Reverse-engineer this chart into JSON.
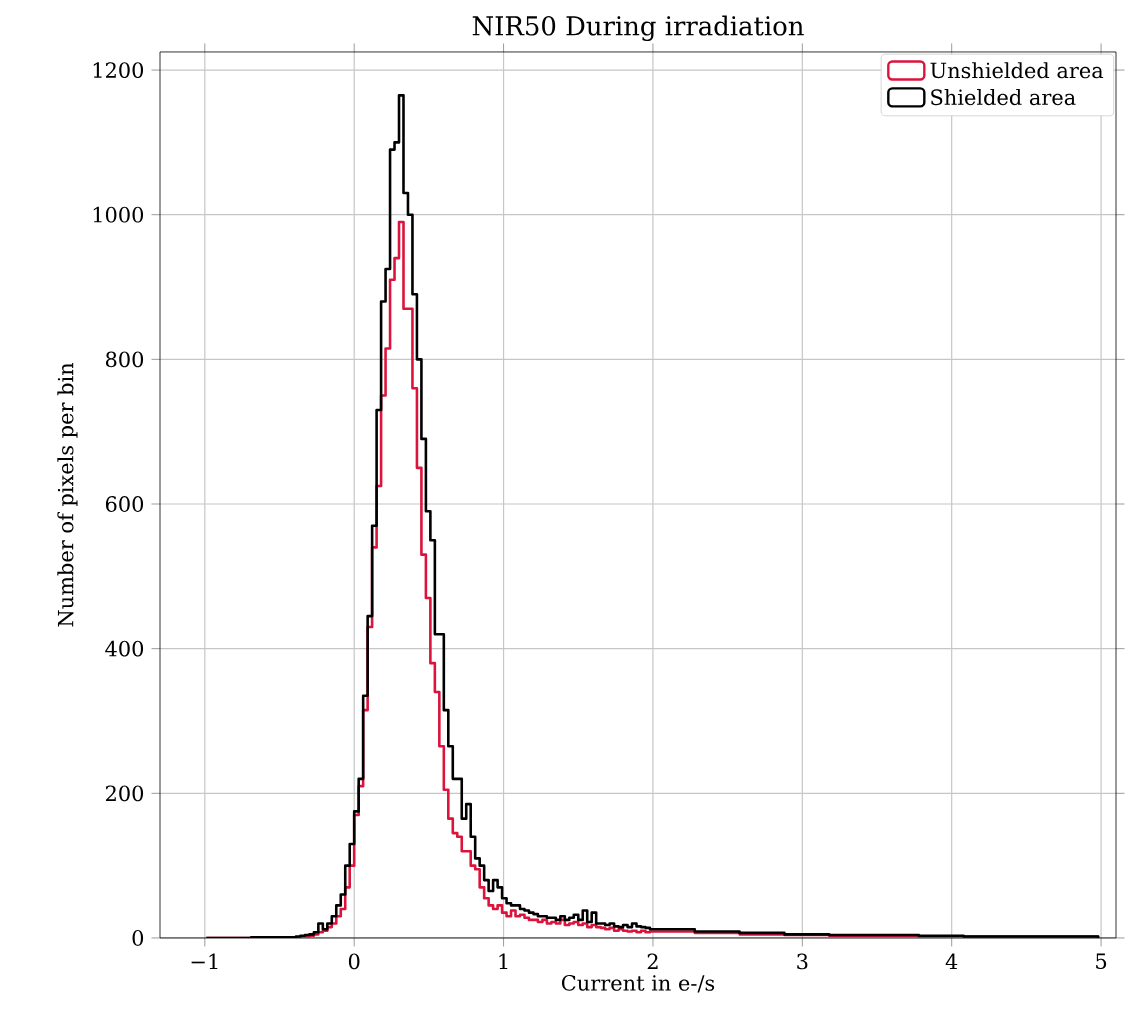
{
  "chart_data": {
    "type": "histogram",
    "title": "NIR50 During irradiation",
    "xlabel": "Current in e-/s",
    "ylabel": "Number of pixels per bin",
    "bins": [
      -0.99,
      -0.69,
      -0.39,
      -0.36,
      -0.33,
      -0.3,
      -0.27,
      -0.24,
      -0.21,
      -0.18,
      -0.15,
      -0.12,
      -0.09,
      -0.06,
      -0.03,
      0,
      0.03,
      0.06,
      0.09,
      0.12,
      0.15,
      0.18,
      0.21,
      0.24,
      0.27,
      0.3,
      0.33,
      0.36,
      0.39,
      0.42,
      0.45,
      0.48,
      0.51,
      0.54,
      0.57,
      0.6,
      0.63,
      0.66,
      0.69,
      0.72,
      0.75,
      0.78,
      0.81,
      0.84,
      0.87,
      0.9,
      0.93,
      0.96,
      0.99,
      1.02,
      1.05,
      1.08,
      1.11,
      1.14,
      1.17,
      1.2,
      1.23,
      1.26,
      1.29,
      1.32,
      1.35,
      1.38,
      1.41,
      1.44,
      1.47,
      1.5,
      1.53,
      1.56,
      1.59,
      1.62,
      1.65,
      1.68,
      1.71,
      1.74,
      1.77,
      1.8,
      1.83,
      1.86,
      1.89,
      1.92,
      1.95,
      1.98,
      2.28,
      2.58,
      2.88,
      3.18,
      3.48,
      3.78,
      4.08,
      4.38,
      4.68,
      4.98
    ],
    "series": [
      {
        "name": "Unshielded area",
        "color": "#dc143c",
        "values": [
          0,
          0,
          1,
          2,
          2,
          3,
          5,
          8,
          10,
          15,
          20,
          30,
          40,
          70,
          100,
          170,
          210,
          315,
          430,
          540,
          625,
          750,
          815,
          910,
          940,
          990,
          870,
          870,
          760,
          650,
          530,
          470,
          380,
          340,
          265,
          205,
          165,
          145,
          140,
          120,
          120,
          100,
          95,
          70,
          55,
          45,
          40,
          45,
          35,
          30,
          38,
          30,
          32,
          28,
          25,
          25,
          22,
          25,
          20,
          22,
          20,
          25,
          18,
          20,
          22,
          18,
          20,
          15,
          18,
          15,
          14,
          12,
          14,
          10,
          12,
          10,
          9,
          10,
          8,
          10,
          8,
          9,
          7,
          5,
          4,
          3,
          3,
          2,
          2,
          2,
          2
        ]
      },
      {
        "name": "Shielded area",
        "color": "#000000",
        "values": [
          0,
          1,
          2,
          3,
          4,
          5,
          8,
          20,
          12,
          20,
          30,
          45,
          60,
          100,
          130,
          175,
          220,
          335,
          445,
          570,
          730,
          880,
          925,
          1090,
          1100,
          1165,
          1030,
          1000,
          890,
          800,
          690,
          590,
          550,
          420,
          420,
          315,
          265,
          220,
          220,
          165,
          185,
          140,
          110,
          100,
          80,
          65,
          80,
          70,
          55,
          48,
          45,
          45,
          40,
          38,
          35,
          33,
          30,
          30,
          28,
          28,
          25,
          30,
          25,
          28,
          32,
          25,
          38,
          22,
          35,
          20,
          20,
          18,
          20,
          16,
          15,
          18,
          15,
          20,
          16,
          15,
          14,
          12,
          9,
          7,
          5,
          4,
          4,
          3,
          2,
          2,
          2
        ]
      }
    ],
    "xlim": [
      -1.3,
      5.1
    ],
    "ylim": [
      0,
      1225
    ],
    "xticks": [
      {
        "value": -1,
        "label": "−1"
      },
      0,
      1,
      2,
      3,
      4,
      5
    ],
    "yticks": [
      0,
      200,
      400,
      600,
      800,
      1000,
      1200
    ],
    "grid": true,
    "legend": "top right"
  }
}
